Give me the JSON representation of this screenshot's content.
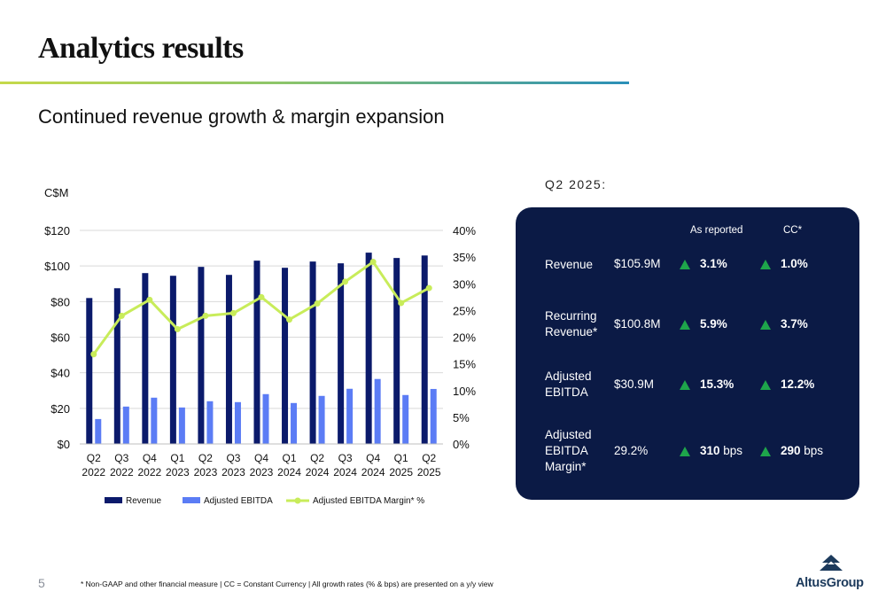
{
  "slide": {
    "title": "Analytics results",
    "subtitle": "Continued revenue growth & margin expansion",
    "page_number": "5",
    "footnote": "* Non-GAAP and other financial measure | CC = Constant Currency | All growth rates (% & bps) are presented on a y/y view",
    "logo_text": "AltusGroup"
  },
  "colors": {
    "revenue": "#0b1a6b",
    "adjusted_ebitda": "#5b7cf5",
    "margin": "#c8ec5a",
    "panel_bg": "#0b1a45",
    "up_arrow": "#1ea64b",
    "rule_start": "#c5d94a",
    "rule_end": "#2a8fb8"
  },
  "chart_data": {
    "type": "bar",
    "y_unit_label": "C$M",
    "categories": [
      [
        "Q2",
        "2022"
      ],
      [
        "Q3",
        "2022"
      ],
      [
        "Q4",
        "2022"
      ],
      [
        "Q1",
        "2023"
      ],
      [
        "Q2",
        "2023"
      ],
      [
        "Q3",
        "2023"
      ],
      [
        "Q4",
        "2023"
      ],
      [
        "Q1",
        "2024"
      ],
      [
        "Q2",
        "2024"
      ],
      [
        "Q3",
        "2024"
      ],
      [
        "Q4",
        "2024"
      ],
      [
        "Q1",
        "2025"
      ],
      [
        "Q2",
        "2025"
      ]
    ],
    "series": [
      {
        "name": "Revenue",
        "type": "bar",
        "axis": "left",
        "values": [
          82,
          87.5,
          96,
          94.5,
          99.5,
          95,
          103,
          99,
          102.5,
          101.5,
          107.5,
          104.5,
          105.9
        ]
      },
      {
        "name": "Adjusted EBITDA",
        "type": "bar",
        "axis": "left",
        "values": [
          14,
          21,
          26,
          20.5,
          24,
          23.5,
          28,
          23,
          27,
          31,
          36.5,
          27.5,
          30.9
        ]
      },
      {
        "name": "Adjusted EBITDA Margin* %",
        "type": "line",
        "axis": "right",
        "values": [
          16.8,
          24.0,
          27.0,
          21.5,
          24.0,
          24.5,
          27.5,
          23.3,
          26.3,
          30.4,
          34.1,
          26.4,
          29.2
        ]
      }
    ],
    "y_left": {
      "min": 0,
      "max": 120,
      "ticks": [
        "$0",
        "$20",
        "$40",
        "$60",
        "$80",
        "$100",
        "$120"
      ]
    },
    "y_right": {
      "min": 0,
      "max": 40,
      "ticks": [
        "0%",
        "5%",
        "10%",
        "15%",
        "20%",
        "25%",
        "30%",
        "35%",
        "40%"
      ]
    },
    "grid": true,
    "legend_position": "bottom"
  },
  "kpi_panel": {
    "period_label": "Q2 2025:",
    "headers": {
      "reported": "As reported",
      "cc": "CC*"
    },
    "rows": [
      {
        "label": "Revenue",
        "value": "$105.9M",
        "reported": "3.1%",
        "reported_unit": "",
        "cc": "1.0%",
        "cc_unit": ""
      },
      {
        "label": "Recurring Revenue*",
        "value": "$100.8M",
        "reported": "5.9%",
        "reported_unit": "",
        "cc": "3.7%",
        "cc_unit": ""
      },
      {
        "label": "Adjusted EBITDA",
        "value": "$30.9M",
        "reported": "15.3%",
        "reported_unit": "",
        "cc": "12.2%",
        "cc_unit": ""
      },
      {
        "label": "Adjusted EBITDA Margin*",
        "value": "29.2%",
        "reported": "310",
        "reported_unit": " bps",
        "cc": "290",
        "cc_unit": " bps"
      }
    ]
  }
}
